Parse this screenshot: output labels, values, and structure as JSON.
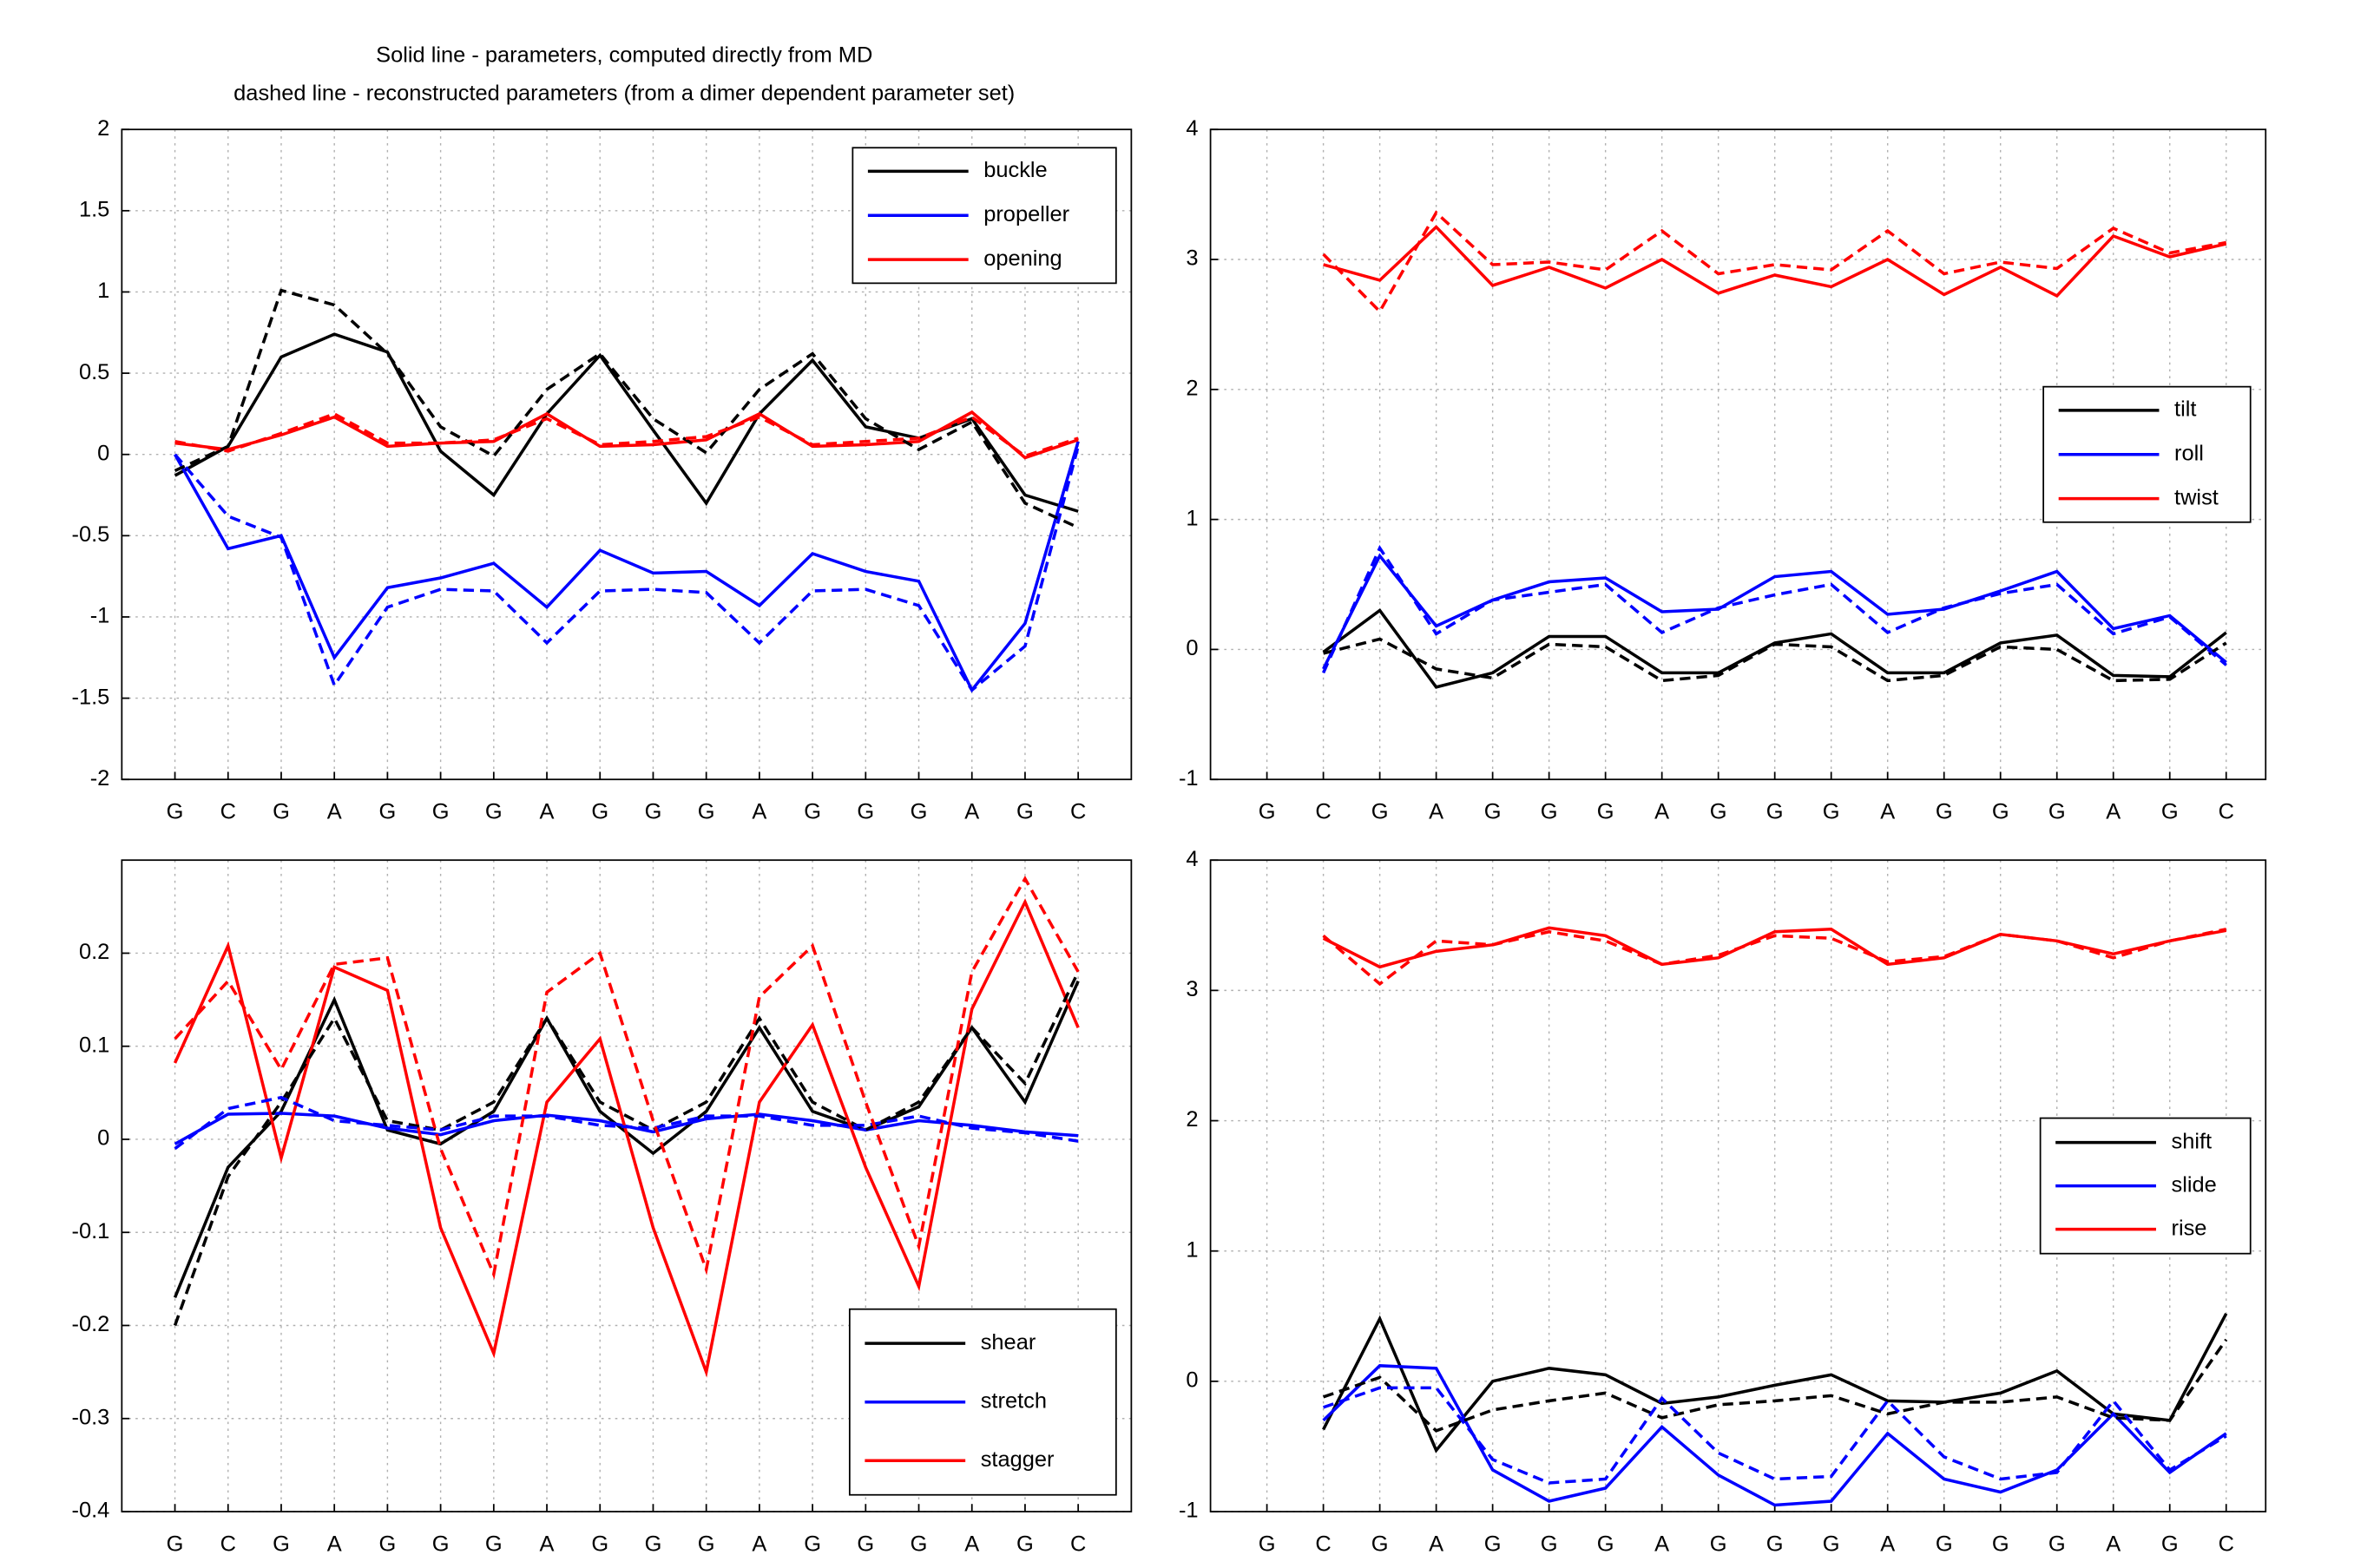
{
  "chart_data": [
    {
      "type": "line",
      "title": [
        "Solid line - parameters, computed directly from MD",
        "dashed line - reconstructed parameters (from a dimer dependent parameter set)"
      ],
      "categories": [
        "G",
        "C",
        "G",
        "A",
        "G",
        "G",
        "G",
        "A",
        "G",
        "G",
        "G",
        "A",
        "G",
        "G",
        "G",
        "A",
        "G",
        "C"
      ],
      "ylim": [
        -2,
        2
      ],
      "yticks": [
        -2,
        -1.5,
        -1,
        -0.5,
        0,
        0.5,
        1,
        1.5,
        2
      ],
      "grid": true,
      "legend": "upper right",
      "series": [
        {
          "name": "buckle",
          "color": "#000000",
          "line_style": "solid",
          "values": [
            -0.13,
            0.05,
            0.6,
            0.74,
            0.63,
            0.02,
            -0.25,
            0.25,
            0.61,
            0.15,
            -0.3,
            0.25,
            0.58,
            0.17,
            0.1,
            0.22,
            -0.25,
            -0.35
          ]
        },
        {
          "name": "propeller",
          "color": "#0000ff",
          "line_style": "solid",
          "values": [
            0.0,
            -0.58,
            -0.5,
            -1.25,
            -0.82,
            -0.76,
            -0.67,
            -0.94,
            -0.59,
            -0.73,
            -0.72,
            -0.93,
            -0.61,
            -0.72,
            -0.78,
            -1.45,
            -1.04,
            0.08
          ]
        },
        {
          "name": "opening",
          "color": "#ff0000",
          "line_style": "solid",
          "values": [
            0.07,
            0.03,
            0.12,
            0.23,
            0.05,
            0.07,
            0.08,
            0.25,
            0.05,
            0.06,
            0.09,
            0.25,
            0.05,
            0.06,
            0.08,
            0.26,
            -0.02,
            0.09
          ]
        },
        {
          "color": "#000000",
          "line_style": "dashed",
          "values": [
            -0.1,
            0.05,
            1.01,
            0.92,
            0.62,
            0.17,
            -0.01,
            0.4,
            0.62,
            0.22,
            0.01,
            0.4,
            0.62,
            0.22,
            0.03,
            0.2,
            -0.3,
            -0.45
          ]
        },
        {
          "color": "#0000ff",
          "line_style": "dashed",
          "values": [
            0.0,
            -0.38,
            -0.51,
            -1.42,
            -0.94,
            -0.83,
            -0.84,
            -1.16,
            -0.84,
            -0.83,
            -0.85,
            -1.16,
            -0.84,
            -0.83,
            -0.93,
            -1.45,
            -1.18,
            0.05
          ]
        },
        {
          "color": "#ff0000",
          "line_style": "dashed",
          "values": [
            0.08,
            0.02,
            0.13,
            0.25,
            0.07,
            0.07,
            0.09,
            0.22,
            0.06,
            0.08,
            0.11,
            0.23,
            0.06,
            0.08,
            0.1,
            0.23,
            -0.01,
            0.1
          ]
        }
      ]
    },
    {
      "type": "line",
      "categories": [
        "G",
        "C",
        "G",
        "A",
        "G",
        "G",
        "G",
        "A",
        "G",
        "G",
        "G",
        "A",
        "G",
        "G",
        "G",
        "A",
        "G",
        "C"
      ],
      "ylim": [
        -1,
        4
      ],
      "yticks": [
        -1,
        0,
        1,
        2,
        3,
        4
      ],
      "grid": true,
      "legend": "center right",
      "series": [
        {
          "name": "tilt",
          "color": "#000000",
          "line_style": "solid",
          "values": [
            null,
            -0.02,
            0.3,
            -0.29,
            -0.18,
            0.1,
            0.1,
            -0.18,
            -0.18,
            0.05,
            0.12,
            -0.18,
            -0.18,
            0.05,
            0.11,
            -0.2,
            -0.21,
            0.13
          ]
        },
        {
          "name": "roll",
          "color": "#0000ff",
          "line_style": "solid",
          "values": [
            null,
            -0.15,
            0.72,
            0.18,
            0.38,
            0.52,
            0.55,
            0.29,
            0.31,
            0.56,
            0.6,
            0.27,
            0.31,
            0.45,
            0.6,
            0.16,
            0.26,
            -0.1
          ]
        },
        {
          "name": "twist",
          "color": "#ff0000",
          "line_style": "solid",
          "values": [
            null,
            2.96,
            2.84,
            3.25,
            2.8,
            2.94,
            2.78,
            3.0,
            2.74,
            2.88,
            2.79,
            3.0,
            2.73,
            2.94,
            2.72,
            3.18,
            3.02,
            3.12
          ]
        },
        {
          "color": "#000000",
          "line_style": "dashed",
          "values": [
            null,
            -0.03,
            0.08,
            -0.15,
            -0.22,
            0.04,
            0.02,
            -0.24,
            -0.2,
            0.04,
            0.02,
            -0.24,
            -0.2,
            0.02,
            0.0,
            -0.24,
            -0.23,
            0.05
          ]
        },
        {
          "color": "#0000ff",
          "line_style": "dashed",
          "values": [
            null,
            -0.18,
            0.78,
            0.12,
            0.38,
            0.44,
            0.5,
            0.13,
            0.32,
            0.42,
            0.5,
            0.13,
            0.32,
            0.43,
            0.5,
            0.12,
            0.25,
            -0.12
          ]
        },
        {
          "color": "#ff0000",
          "line_style": "dashed",
          "values": [
            null,
            3.04,
            2.6,
            3.36,
            2.96,
            2.98,
            2.92,
            3.22,
            2.89,
            2.96,
            2.92,
            3.22,
            2.89,
            2.98,
            2.93,
            3.24,
            3.05,
            3.13
          ]
        }
      ]
    },
    {
      "type": "line",
      "categories": [
        "G",
        "C",
        "G",
        "A",
        "G",
        "G",
        "G",
        "A",
        "G",
        "G",
        "G",
        "A",
        "G",
        "G",
        "G",
        "A",
        "G",
        "C"
      ],
      "ylim": [
        -0.4,
        0.3
      ],
      "yticks": [
        -0.4,
        -0.3,
        -0.2,
        -0.1,
        0,
        0.1,
        0.2
      ],
      "grid": true,
      "legend": "lower right",
      "series": [
        {
          "name": "shear",
          "color": "#000000",
          "line_style": "solid",
          "values": [
            -0.17,
            -0.03,
            0.03,
            0.15,
            0.01,
            -0.005,
            0.03,
            0.13,
            0.03,
            -0.015,
            0.03,
            0.12,
            0.03,
            0.01,
            0.035,
            0.12,
            0.04,
            0.17
          ]
        },
        {
          "name": "stretch",
          "color": "#0000ff",
          "line_style": "solid",
          "values": [
            -0.005,
            0.027,
            0.028,
            0.025,
            0.012,
            0.005,
            0.02,
            0.026,
            0.02,
            0.008,
            0.022,
            0.027,
            0.02,
            0.01,
            0.02,
            0.015,
            0.008,
            0.004
          ]
        },
        {
          "name": "stagger",
          "color": "#ff0000",
          "line_style": "solid",
          "values": [
            0.082,
            0.208,
            -0.02,
            0.185,
            0.16,
            -0.095,
            -0.23,
            0.04,
            0.108,
            -0.095,
            -0.25,
            0.04,
            0.123,
            -0.03,
            -0.158,
            0.14,
            0.255,
            0.12
          ]
        },
        {
          "color": "#000000",
          "line_style": "dashed",
          "values": [
            -0.2,
            -0.04,
            0.04,
            0.13,
            0.02,
            0.01,
            0.04,
            0.13,
            0.04,
            0.01,
            0.04,
            0.13,
            0.04,
            0.01,
            0.04,
            0.12,
            0.06,
            0.18
          ]
        },
        {
          "color": "#0000ff",
          "line_style": "dashed",
          "values": [
            -0.01,
            0.033,
            0.045,
            0.02,
            0.015,
            0.01,
            0.025,
            0.025,
            0.015,
            0.012,
            0.025,
            0.025,
            0.015,
            0.015,
            0.025,
            0.012,
            0.007,
            -0.002
          ]
        },
        {
          "color": "#ff0000",
          "line_style": "dashed",
          "values": [
            0.108,
            0.17,
            0.075,
            0.188,
            0.195,
            -0.01,
            -0.145,
            0.158,
            0.2,
            0.02,
            -0.14,
            0.153,
            0.208,
            0.04,
            -0.115,
            0.18,
            0.28,
            0.18
          ]
        }
      ]
    },
    {
      "type": "line",
      "categories": [
        "G",
        "C",
        "G",
        "A",
        "G",
        "G",
        "G",
        "A",
        "G",
        "G",
        "G",
        "A",
        "G",
        "G",
        "G",
        "A",
        "G",
        "C"
      ],
      "ylim": [
        -1,
        4
      ],
      "yticks": [
        -1,
        0,
        1,
        2,
        3,
        4
      ],
      "grid": true,
      "legend": "center right",
      "series": [
        {
          "name": "shift",
          "color": "#000000",
          "line_style": "solid",
          "values": [
            null,
            -0.37,
            0.48,
            -0.53,
            0.0,
            0.1,
            0.05,
            -0.17,
            -0.12,
            -0.03,
            0.05,
            -0.15,
            -0.16,
            -0.09,
            0.08,
            -0.25,
            -0.3,
            0.52
          ]
        },
        {
          "name": "slide",
          "color": "#0000ff",
          "line_style": "solid",
          "values": [
            null,
            -0.3,
            0.12,
            0.1,
            -0.68,
            -0.92,
            -0.82,
            -0.35,
            -0.72,
            -0.95,
            -0.92,
            -0.4,
            -0.75,
            -0.85,
            -0.68,
            -0.25,
            -0.7,
            -0.4
          ]
        },
        {
          "name": "rise",
          "color": "#ff0000",
          "line_style": "solid",
          "values": [
            null,
            3.4,
            3.18,
            3.3,
            3.35,
            3.48,
            3.42,
            3.2,
            3.25,
            3.45,
            3.47,
            3.2,
            3.25,
            3.43,
            3.38,
            3.28,
            3.38,
            3.46
          ]
        },
        {
          "color": "#000000",
          "line_style": "dashed",
          "values": [
            null,
            -0.12,
            0.03,
            -0.38,
            -0.22,
            -0.15,
            -0.09,
            -0.28,
            -0.18,
            -0.15,
            -0.11,
            -0.25,
            -0.16,
            -0.16,
            -0.12,
            -0.28,
            -0.3,
            0.32
          ]
        },
        {
          "color": "#0000ff",
          "line_style": "dashed",
          "values": [
            null,
            -0.2,
            -0.05,
            -0.05,
            -0.6,
            -0.78,
            -0.75,
            -0.13,
            -0.55,
            -0.75,
            -0.73,
            -0.15,
            -0.58,
            -0.75,
            -0.7,
            -0.15,
            -0.68,
            -0.42
          ]
        },
        {
          "color": "#ff0000",
          "line_style": "dashed",
          "values": [
            null,
            3.42,
            3.05,
            3.38,
            3.35,
            3.45,
            3.38,
            3.2,
            3.27,
            3.42,
            3.4,
            3.22,
            3.26,
            3.43,
            3.38,
            3.25,
            3.38,
            3.47
          ]
        }
      ]
    }
  ]
}
